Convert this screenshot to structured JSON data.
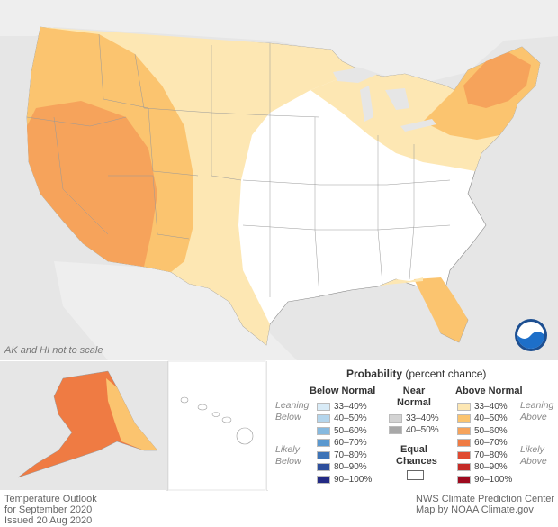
{
  "map": {
    "scale_note": "AK and HI not to scale"
  },
  "footer_left": [
    "Temperature Outlook",
    "for September 2020",
    "Issued 20 Aug 2020"
  ],
  "footer_right": [
    "NWS Climate Prediction Center",
    "Map by NOAA Climate.gov"
  ],
  "logo": {
    "text": "NOAA",
    "color": "#1d4f91"
  },
  "legend": {
    "title": "Probability",
    "subtitle": "(percent chance)",
    "below": {
      "heading": "Below Normal",
      "items": [
        {
          "label": "33–40%",
          "color": "#d8ebf7"
        },
        {
          "label": "40–50%",
          "color": "#b4d5ec"
        },
        {
          "label": "50–60%",
          "color": "#86b9df"
        },
        {
          "label": "60–70%",
          "color": "#5a98cf"
        },
        {
          "label": "70–80%",
          "color": "#3e74b7"
        },
        {
          "label": "80–90%",
          "color": "#2e4f9c"
        },
        {
          "label": "90–100%",
          "color": "#232a84"
        }
      ]
    },
    "near": {
      "heading": "Near Normal",
      "items": [
        {
          "label": "33–40%",
          "color": "#d3d3d3"
        },
        {
          "label": "40–50%",
          "color": "#a8a8a8"
        }
      ]
    },
    "above": {
      "heading": "Above Normal",
      "items": [
        {
          "label": "33–40%",
          "color": "#fde7b3"
        },
        {
          "label": "40–50%",
          "color": "#fbc46f"
        },
        {
          "label": "50–60%",
          "color": "#f6a35b"
        },
        {
          "label": "60–70%",
          "color": "#ef7b43"
        },
        {
          "label": "70–80%",
          "color": "#e04a31"
        },
        {
          "label": "80–90%",
          "color": "#c42b27"
        },
        {
          "label": "90–100%",
          "color": "#9e0a1e"
        }
      ]
    },
    "equal": "Equal Chances",
    "side_labels": {
      "leaning_below": "Leaning Below",
      "likely_below": "Likely Below",
      "leaning_above": "Leaning Above",
      "likely_above": "Likely Above"
    }
  }
}
